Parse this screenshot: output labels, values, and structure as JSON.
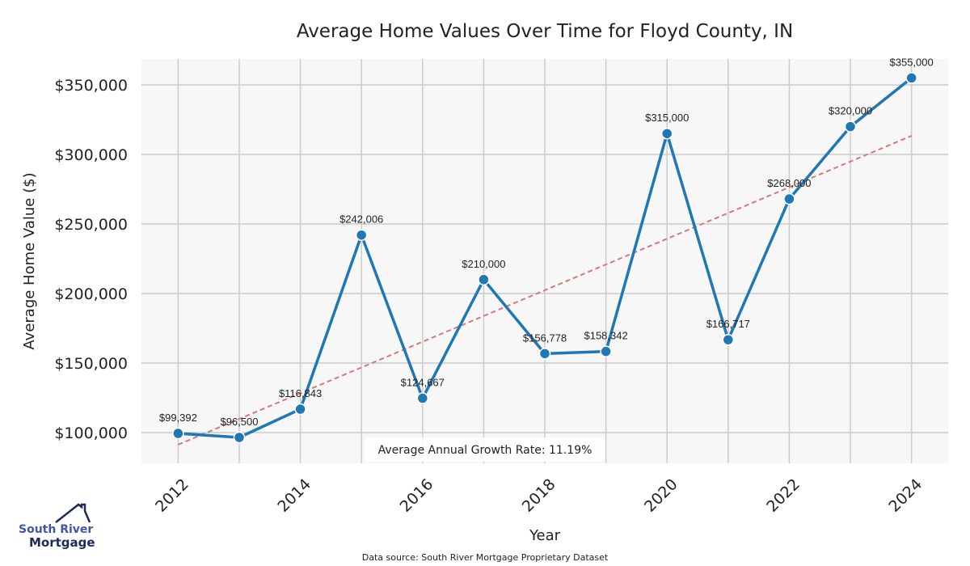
{
  "chart_data": {
    "type": "line",
    "title": "Average Home Values Over Time for Floyd County, IN",
    "xlabel": "Year",
    "ylabel": "Average Home Value ($)",
    "x": [
      2012,
      2013,
      2014,
      2015,
      2016,
      2017,
      2018,
      2019,
      2020,
      2021,
      2022,
      2023,
      2024
    ],
    "series": [
      {
        "name": "Average Home Value",
        "values": [
          99392,
          96500,
          116843,
          242006,
          124667,
          210000,
          156778,
          158342,
          315000,
          166717,
          268000,
          320000,
          355000
        ],
        "color": "#1f77b4"
      }
    ],
    "data_labels": [
      "$99,392",
      "$96,500",
      "$116,843",
      "$242,006",
      "$124,667",
      "$210,000",
      "$156,778",
      "$158,342",
      "$315,000",
      "$166,717",
      "$268,000",
      "$320,000",
      "$355,000"
    ],
    "trendline": {
      "x": [
        2012,
        2024
      ],
      "values": [
        91300,
        313400
      ],
      "color": "#d9777a",
      "style": "dashed"
    },
    "xticks": [
      2012,
      2014,
      2016,
      2018,
      2020,
      2022,
      2024
    ],
    "xtick_labels": [
      "2012",
      "2014",
      "2016",
      "2018",
      "2020",
      "2022",
      "2024"
    ],
    "yticks": [
      100000,
      150000,
      200000,
      250000,
      300000,
      350000
    ],
    "ytick_labels": [
      "$100,000",
      "$150,000",
      "$200,000",
      "$250,000",
      "$300,000",
      "$350,000"
    ],
    "xlim": [
      2011.4,
      2024.6
    ],
    "ylim": [
      77900,
      368600
    ],
    "grid": true,
    "annotation": "Average Annual Growth Rate: 11.19%"
  },
  "source": "Data source: South River Mortgage Proprietary Dataset",
  "logo": {
    "line1": "South River",
    "line2": "Mortgage"
  }
}
